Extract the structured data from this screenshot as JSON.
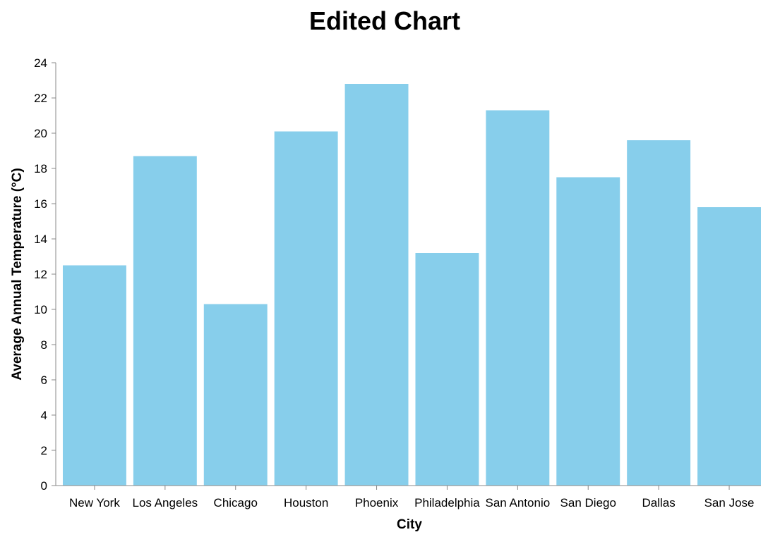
{
  "chart_data": {
    "type": "bar",
    "title": "Edited Chart",
    "xlabel": "City",
    "ylabel": "Average Annual Temperature (°C)",
    "categories": [
      "New York",
      "Los Angeles",
      "Chicago",
      "Houston",
      "Phoenix",
      "Philadelphia",
      "San Antonio",
      "San Diego",
      "Dallas",
      "San Jose"
    ],
    "values": [
      12.5,
      18.7,
      10.3,
      20.1,
      22.8,
      13.2,
      21.3,
      17.5,
      19.6,
      15.8
    ],
    "ylim": [
      0,
      24
    ],
    "yticks": [
      0,
      2,
      4,
      6,
      8,
      10,
      12,
      14,
      16,
      18,
      20,
      22,
      24
    ],
    "grid": false,
    "colors": {
      "bar": "#87ceeb",
      "axis": "#888888"
    }
  }
}
